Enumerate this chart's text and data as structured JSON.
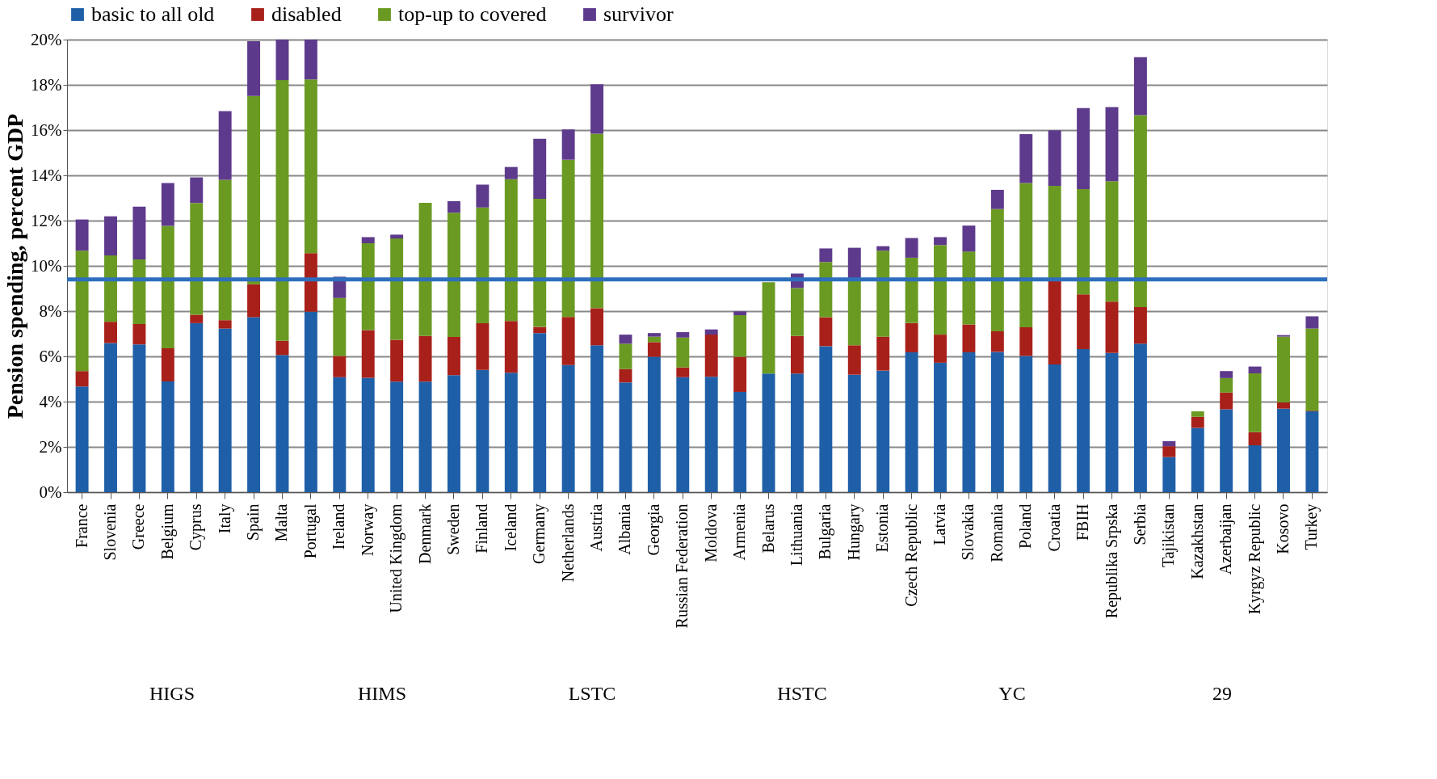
{
  "chart_data": {
    "type": "bar",
    "stacked": true,
    "ylabel": "Pension spending, percent GDP",
    "categories": [
      "France",
      "Slovenia",
      "Greece",
      "Belgium",
      "Cyprus",
      "Italy",
      "Spain",
      "Malta",
      "Portugal",
      "Ireland",
      "Norway",
      "United Kingdom",
      "Denmark",
      "Sweden",
      "Finland",
      "Iceland",
      "Germany",
      "Netherlands",
      "Austria",
      "Albania",
      "Georgia",
      "Russian Federation",
      "Moldova",
      "Armenia",
      "Belarus",
      "Lithuania",
      "Bulgaria",
      "Hungary",
      "Estonia",
      "Czech Republic",
      "Latvia",
      "Slovakia",
      "Romania",
      "Poland",
      "Croatia",
      "FBIH",
      "Republika Srpska",
      "Serbia",
      "Tajikistan",
      "Kazakhstan",
      "Azerbaijan",
      "Kyrgyz Republic",
      "Kosovo",
      "Turkey"
    ],
    "series": [
      {
        "name": "basic to all old",
        "color": "#1f5fa8",
        "values": [
          4.67,
          6.59,
          6.53,
          4.89,
          7.47,
          7.23,
          7.73,
          6.06,
          7.97,
          5.08,
          5.05,
          4.88,
          4.88,
          5.17,
          5.4,
          5.28,
          7.03,
          5.62,
          6.49,
          4.85,
          5.98,
          5.08,
          5.1,
          4.43,
          5.24,
          5.24,
          6.45,
          5.19,
          5.37,
          6.18,
          5.72,
          6.18,
          6.2,
          6.02,
          5.64,
          6.32,
          6.15,
          6.56,
          1.55,
          2.84,
          3.66,
          2.07,
          3.69,
          3.57
        ]
      },
      {
        "name": "disabled",
        "color": "#a8201a",
        "values": [
          0.68,
          0.94,
          0.9,
          1.47,
          0.37,
          0.37,
          1.46,
          0.63,
          2.59,
          0.94,
          2.11,
          1.85,
          2.02,
          1.69,
          2.06,
          2.28,
          0.27,
          2.12,
          1.64,
          0.59,
          0.65,
          0.43,
          1.86,
          1.55,
          0,
          1.66,
          1.28,
          1.3,
          1.5,
          1.29,
          1.24,
          1.23,
          0.91,
          1.27,
          3.68,
          2.42,
          2.27,
          1.62,
          0.48,
          0.49,
          0.74,
          0.58,
          0.28,
          0.03
        ]
      },
      {
        "name": "top-up to covered",
        "color": "#6b9a22",
        "values": [
          5.32,
          2.93,
          2.86,
          5.41,
          4.94,
          6.2,
          8.32,
          11.52,
          7.68,
          2.56,
          3.84,
          4.48,
          5.89,
          5.49,
          5.12,
          6.27,
          5.66,
          6.95,
          7.71,
          1.12,
          0.24,
          1.32,
          0,
          1.84,
          4.04,
          2.12,
          2.44,
          2.9,
          3.8,
          2.89,
          3.96,
          3.22,
          5.4,
          6.37,
          4.22,
          4.65,
          5.32,
          8.48,
          0,
          0.24,
          0.64,
          2.6,
          2.9,
          3.63
        ]
      },
      {
        "name": "survivor",
        "color": "#5e3a8c",
        "values": [
          1.38,
          1.73,
          2.33,
          1.89,
          1.13,
          3.04,
          2.42,
          1.79,
          1.76,
          0.94,
          0.27,
          0.17,
          0,
          0.51,
          1.01,
          0.54,
          2.66,
          1.34,
          2.19,
          0.4,
          0.16,
          0.24,
          0.23,
          0.17,
          0,
          0.64,
          0.6,
          1.41,
          0.2,
          0.87,
          0.35,
          1.15,
          0.85,
          2.16,
          2.45,
          3.58,
          3.28,
          2.56,
          0.22,
          0,
          0.31,
          0.3,
          0.07,
          0.54
        ]
      }
    ],
    "ylim": [
      0,
      20
    ],
    "yticks": [
      {
        "value": 0,
        "label": "0%"
      },
      {
        "value": 2,
        "label": "2%"
      },
      {
        "value": 4,
        "label": "4%"
      },
      {
        "value": 6,
        "label": "6%"
      },
      {
        "value": 8,
        "label": "8%"
      },
      {
        "value": 10,
        "label": "10%"
      },
      {
        "value": 12,
        "label": "12%"
      },
      {
        "value": 14,
        "label": "14%"
      },
      {
        "value": 16,
        "label": "16%"
      },
      {
        "value": 18,
        "label": "18%"
      },
      {
        "value": 20,
        "label": "20%"
      }
    ],
    "ref_lines": [
      {
        "axis": "y",
        "value": 9.4,
        "color": "#2e6fbd"
      }
    ],
    "grid": "y",
    "legend": "top",
    "annotations": [
      "HIGS",
      "HIMS",
      "LSTC",
      "HSTC",
      "YC",
      "29"
    ]
  }
}
